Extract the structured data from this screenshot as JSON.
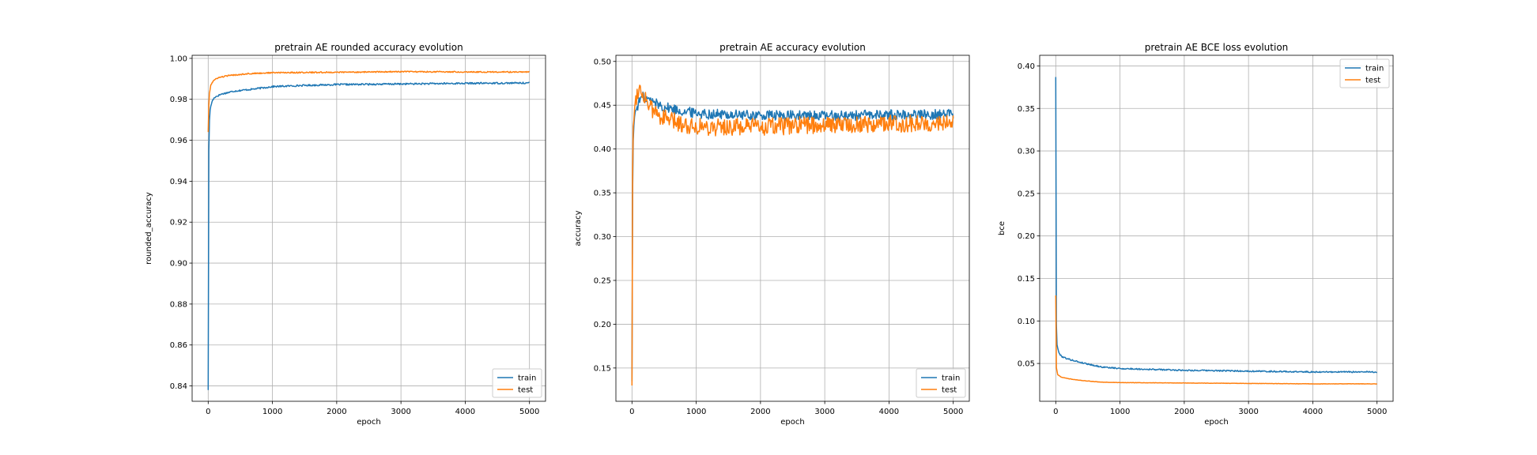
{
  "chart_data": [
    {
      "type": "line",
      "title": "pretrain AE rounded accuracy evolution",
      "xlabel": "epoch",
      "ylabel": "rounded_accuracy",
      "xlim": [
        -250,
        5250
      ],
      "ylim": [
        0.8325,
        1.0015
      ],
      "xticks": [
        0,
        1000,
        2000,
        3000,
        4000,
        5000
      ],
      "yticks": [
        0.84,
        0.86,
        0.88,
        0.9,
        0.92,
        0.94,
        0.96,
        0.98,
        1.0
      ],
      "ytick_labels": [
        "0.84",
        "0.86",
        "0.88",
        "0.90",
        "0.92",
        "0.94",
        "0.96",
        "0.98",
        "1.00"
      ],
      "grid": true,
      "legend": "lower-right",
      "series": [
        {
          "name": "train",
          "color": "#1f77b4",
          "noise": 0.0004,
          "points": [
            [
              0,
              0.838
            ],
            [
              3,
              0.905
            ],
            [
              8,
              0.95
            ],
            [
              15,
              0.967
            ],
            [
              30,
              0.975
            ],
            [
              60,
              0.979
            ],
            [
              100,
              0.981
            ],
            [
              200,
              0.9825
            ],
            [
              400,
              0.984
            ],
            [
              700,
              0.985
            ],
            [
              1000,
              0.9862
            ],
            [
              1500,
              0.9868
            ],
            [
              2000,
              0.9872
            ],
            [
              3000,
              0.9875
            ],
            [
              4000,
              0.9878
            ],
            [
              5000,
              0.988
            ]
          ]
        },
        {
          "name": "test",
          "color": "#ff7f0e",
          "noise": 0.0003,
          "points": [
            [
              0,
              0.964
            ],
            [
              5,
              0.972
            ],
            [
              15,
              0.982
            ],
            [
              40,
              0.987
            ],
            [
              80,
              0.989
            ],
            [
              150,
              0.9905
            ],
            [
              300,
              0.9915
            ],
            [
              600,
              0.9925
            ],
            [
              1000,
              0.993
            ],
            [
              2000,
              0.9932
            ],
            [
              3000,
              0.9935
            ],
            [
              4000,
              0.9934
            ],
            [
              5000,
              0.9933
            ]
          ]
        }
      ]
    },
    {
      "type": "line",
      "title": "pretrain AE accuracy evolution",
      "xlabel": "epoch",
      "ylabel": "accuracy",
      "xlim": [
        -250,
        5250
      ],
      "ylim": [
        0.112,
        0.507
      ],
      "xticks": [
        0,
        1000,
        2000,
        3000,
        4000,
        5000
      ],
      "yticks": [
        0.15,
        0.2,
        0.25,
        0.3,
        0.35,
        0.4,
        0.45,
        0.5
      ],
      "ytick_labels": [
        "0.15",
        "0.20",
        "0.25",
        "0.30",
        "0.35",
        "0.40",
        "0.45",
        "0.50"
      ],
      "grid": true,
      "legend": "lower-right",
      "series": [
        {
          "name": "train",
          "color": "#1f77b4",
          "noise": 0.006,
          "points": [
            [
              0,
              0.135
            ],
            [
              5,
              0.3
            ],
            [
              15,
              0.4
            ],
            [
              30,
              0.43
            ],
            [
              60,
              0.445
            ],
            [
              150,
              0.46
            ],
            [
              300,
              0.455
            ],
            [
              500,
              0.448
            ],
            [
              800,
              0.443
            ],
            [
              1200,
              0.44
            ],
            [
              2000,
              0.438
            ],
            [
              3000,
              0.438
            ],
            [
              4000,
              0.439
            ],
            [
              5000,
              0.44
            ]
          ]
        },
        {
          "name": "test",
          "color": "#ff7f0e",
          "noise": 0.01,
          "points": [
            [
              0,
              0.13
            ],
            [
              5,
              0.32
            ],
            [
              15,
              0.42
            ],
            [
              40,
              0.45
            ],
            [
              100,
              0.47
            ],
            [
              200,
              0.46
            ],
            [
              300,
              0.445
            ],
            [
              500,
              0.435
            ],
            [
              800,
              0.428
            ],
            [
              1200,
              0.425
            ],
            [
              2000,
              0.425
            ],
            [
              3000,
              0.428
            ],
            [
              4000,
              0.429
            ],
            [
              5000,
              0.43
            ]
          ]
        }
      ]
    },
    {
      "type": "line",
      "title": "pretrain AE BCE loss evolution",
      "xlabel": "epoch",
      "ylabel": "bce",
      "xlim": [
        -250,
        5250
      ],
      "ylim": [
        0.0055,
        0.4125
      ],
      "xticks": [
        0,
        1000,
        2000,
        3000,
        4000,
        5000
      ],
      "yticks": [
        0.05,
        0.1,
        0.15,
        0.2,
        0.25,
        0.3,
        0.35,
        0.4
      ],
      "ytick_labels": [
        "0.05",
        "0.10",
        "0.15",
        "0.20",
        "0.25",
        "0.30",
        "0.35",
        "0.40"
      ],
      "grid": true,
      "legend": "upper-right",
      "series": [
        {
          "name": "train",
          "color": "#1f77b4",
          "noise": 0.0008,
          "points": [
            [
              0,
              0.387
            ],
            [
              3,
              0.2
            ],
            [
              8,
              0.1
            ],
            [
              20,
              0.072
            ],
            [
              50,
              0.062
            ],
            [
              100,
              0.058
            ],
            [
              200,
              0.055
            ],
            [
              400,
              0.051
            ],
            [
              700,
              0.046
            ],
            [
              1000,
              0.044
            ],
            [
              1500,
              0.043
            ],
            [
              2000,
              0.042
            ],
            [
              3000,
              0.041
            ],
            [
              4000,
              0.04
            ],
            [
              5000,
              0.04
            ]
          ]
        },
        {
          "name": "test",
          "color": "#ff7f0e",
          "noise": 0.0002,
          "points": [
            [
              0,
              0.13
            ],
            [
              3,
              0.07
            ],
            [
              10,
              0.045
            ],
            [
              30,
              0.037
            ],
            [
              80,
              0.034
            ],
            [
              200,
              0.032
            ],
            [
              400,
              0.03
            ],
            [
              700,
              0.028
            ],
            [
              1000,
              0.0275
            ],
            [
              2000,
              0.027
            ],
            [
              3000,
              0.0265
            ],
            [
              4000,
              0.026
            ],
            [
              5000,
              0.026
            ]
          ]
        }
      ]
    }
  ]
}
